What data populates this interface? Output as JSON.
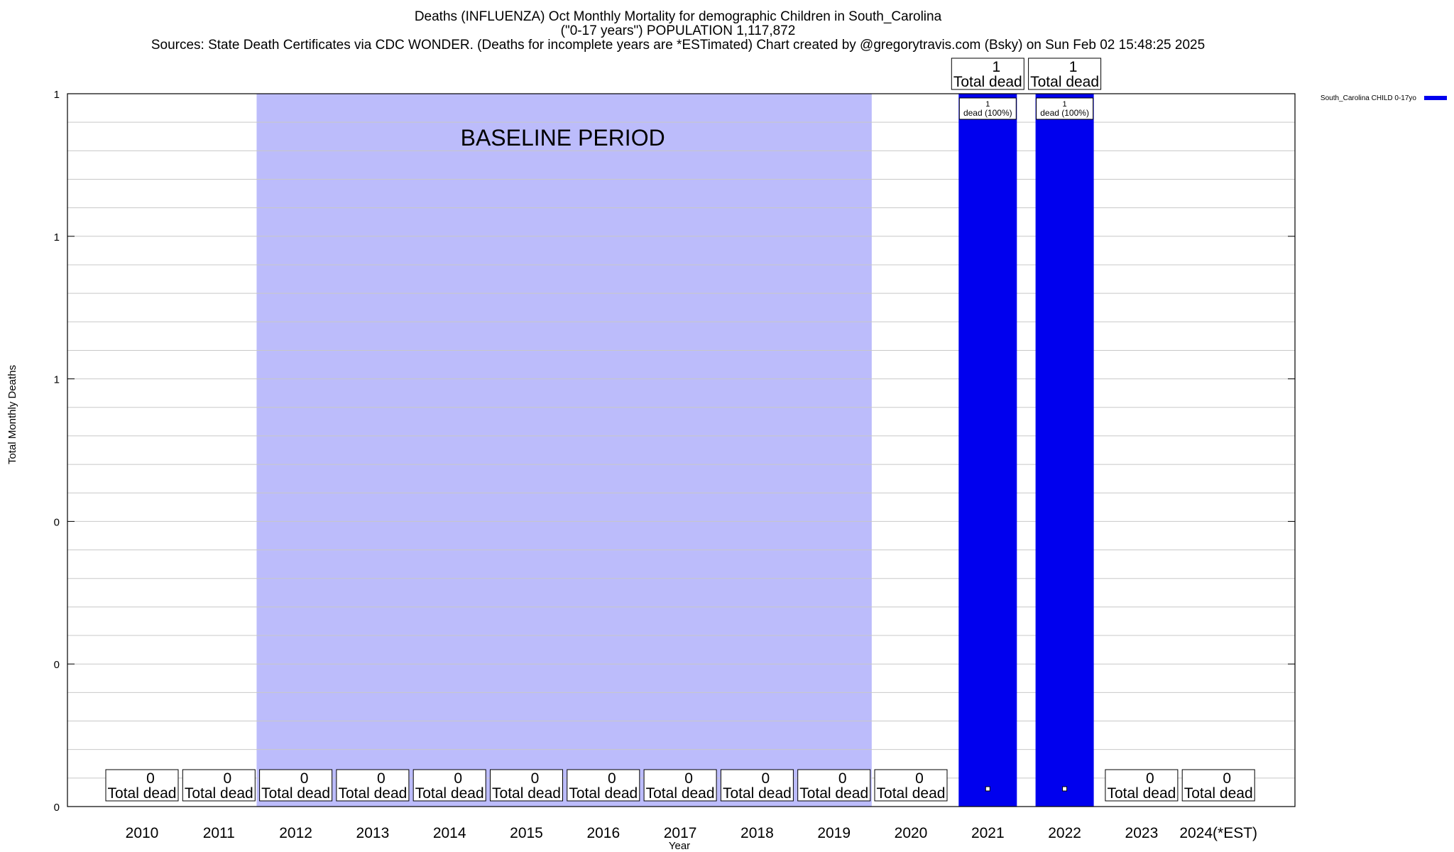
{
  "header": {
    "title_line1": "Deaths (INFLUENZA) Oct Monthly Mortality for demographic Children in South_Carolina",
    "title_line2": "(\"0-17 years\") POPULATION 1,117,872",
    "title_line3": "Sources: State Death Certificates via CDC WONDER. (Deaths for incomplete years are *ESTimated)               Chart created by @gregorytravis.com (Bsky) on Sun Feb 02 15:48:25 2025"
  },
  "chart_data": {
    "type": "bar",
    "title": "Deaths (INFLUENZA) Oct Monthly Mortality for demographic Children in South_Carolina",
    "xlabel": "Year",
    "ylabel": "Total Monthly Deaths",
    "categories": [
      "2010",
      "2011",
      "2012",
      "2013",
      "2014",
      "2015",
      "2016",
      "2017",
      "2018",
      "2019",
      "2020",
      "2021",
      "2022",
      "2023",
      "2024(*EST)"
    ],
    "series": [
      {
        "name": "South_Carolina CHILD 0-17yo",
        "color": "#0000ee",
        "values": [
          0,
          0,
          0,
          0,
          0,
          0,
          0,
          0,
          0,
          0,
          0,
          1,
          1,
          0,
          0
        ]
      }
    ],
    "ylim": [
      0,
      1
    ],
    "ytick_labels": [
      "0",
      "0",
      "0",
      "1",
      "1",
      "1"
    ],
    "total_label_text": "Total dead",
    "bar_inner_label": "dead (100%)",
    "baseline": {
      "label": "BASELINE PERIOD",
      "from": "2012",
      "to": "2019",
      "color": "#bcbcfb"
    },
    "grid": true,
    "legend_position": "top-right"
  }
}
